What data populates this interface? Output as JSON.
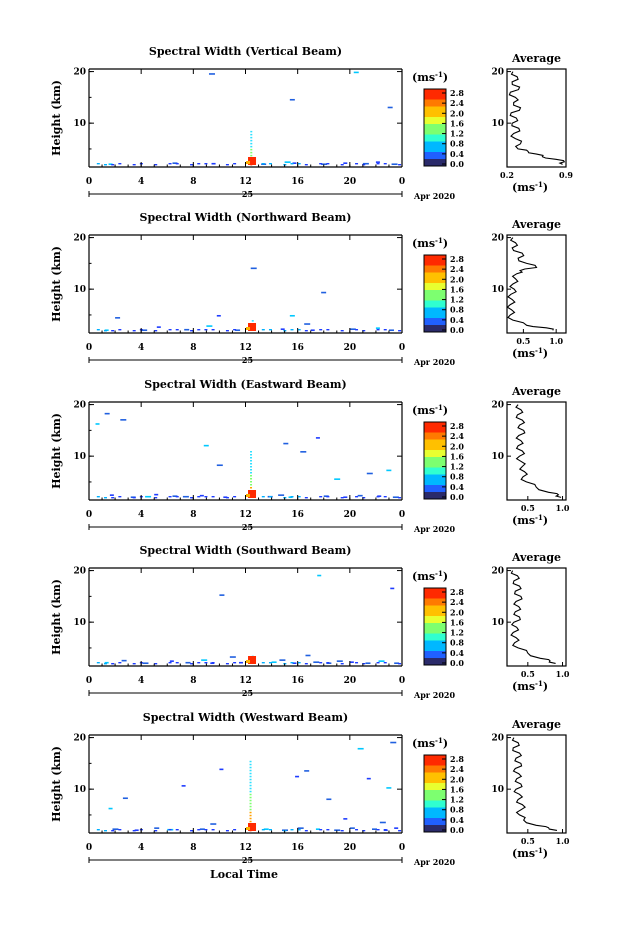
{
  "figure": {
    "xlabel": "Local Time",
    "date_month": "Apr 2020",
    "date_day": "25"
  },
  "chart_data": [
    {
      "type": "heatmap",
      "beam": "vertical",
      "title": "Spectral Width (Vertical Beam)",
      "ylabel": "Height (km)",
      "xlabel": "Local Time",
      "x_ticks": [
        "0",
        "4",
        "8",
        "12",
        "16",
        "20",
        "0"
      ],
      "xlim": [
        0,
        24
      ],
      "y_ticks": [
        "20",
        "10"
      ],
      "ylim": [
        1.5,
        20.5
      ],
      "colorbar": {
        "unit": "(ms-1)",
        "min": 0,
        "max": 2.9,
        "ticks": [
          "2.8",
          "2.4",
          "2.0",
          "1.6",
          "1.2",
          "0.8",
          "0.4",
          "0.0"
        ]
      },
      "burst_time": 12.5,
      "burst_top": 8.5,
      "speckles": [
        [
          1.5,
          2.0
        ],
        [
          6.4,
          2.2
        ],
        [
          9.2,
          19.5
        ],
        [
          9.4,
          2.1
        ],
        [
          13.2,
          2.0
        ],
        [
          15.0,
          2.4
        ],
        [
          15.6,
          2.2
        ],
        [
          15.4,
          14.5
        ],
        [
          17.8,
          2.0
        ],
        [
          19.5,
          2.2
        ],
        [
          20.3,
          19.8
        ],
        [
          21.0,
          2.1
        ],
        [
          22.0,
          2.4
        ],
        [
          22.9,
          13.0
        ],
        [
          23.2,
          2.0
        ]
      ],
      "average": {
        "title": "Average",
        "unit": "(ms-1)",
        "x_ticks": [
          "0.2",
          "0.9"
        ],
        "xlim": [
          0.2,
          0.9
        ],
        "y_ticks": [
          "20",
          "10"
        ],
        "ylim": [
          1.5,
          20.5
        ],
        "profile": [
          [
            20,
            0.27
          ],
          [
            19,
            0.32
          ],
          [
            18,
            0.26
          ],
          [
            17,
            0.35
          ],
          [
            16,
            0.24
          ],
          [
            15,
            0.3
          ],
          [
            14,
            0.28
          ],
          [
            13,
            0.36
          ],
          [
            12,
            0.25
          ],
          [
            11,
            0.31
          ],
          [
            10,
            0.26
          ],
          [
            9,
            0.34
          ],
          [
            8,
            0.28
          ],
          [
            7,
            0.3
          ],
          [
            6,
            0.36
          ],
          [
            5,
            0.33
          ],
          [
            4.5,
            0.45
          ],
          [
            4,
            0.55
          ],
          [
            3.5,
            0.62
          ],
          [
            3,
            0.78
          ],
          [
            2.5,
            0.88
          ],
          [
            2,
            0.86
          ]
        ]
      }
    },
    {
      "type": "heatmap",
      "beam": "northward",
      "title": "Spectral Width (Northward Beam)",
      "ylabel": "Height (km)",
      "xlabel": "Local Time",
      "x_ticks": [
        "0",
        "4",
        "8",
        "12",
        "16",
        "20",
        "0"
      ],
      "xlim": [
        0,
        24
      ],
      "y_ticks": [
        "20",
        "10"
      ],
      "ylim": [
        1.5,
        20.5
      ],
      "colorbar": {
        "unit": "(ms-1)",
        "min": 0,
        "max": 2.9,
        "ticks": [
          "2.8",
          "2.4",
          "2.0",
          "1.6",
          "1.2",
          "0.8",
          "0.4",
          "0.0"
        ]
      },
      "burst_time": 12.5,
      "burst_top": 4.0,
      "speckles": [
        [
          1.2,
          2.0
        ],
        [
          2.0,
          4.4
        ],
        [
          4.0,
          2.0
        ],
        [
          5.2,
          2.6
        ],
        [
          7.3,
          2.1
        ],
        [
          9.0,
          2.8
        ],
        [
          9.8,
          4.8
        ],
        [
          11.2,
          2.0
        ],
        [
          12.4,
          14.0
        ],
        [
          14.7,
          2.2
        ],
        [
          15.4,
          4.8
        ],
        [
          16.5,
          3.2
        ],
        [
          17.0,
          2.0
        ],
        [
          17.8,
          9.3
        ],
        [
          20.0,
          2.2
        ],
        [
          22.0,
          2.4
        ],
        [
          23.0,
          2.0
        ]
      ],
      "average": {
        "title": "Average",
        "unit": "(ms-1)",
        "x_ticks": [
          "0.5",
          "1.0"
        ],
        "xlim": [
          0.25,
          1.15
        ],
        "y_ticks": [
          "20",
          "10"
        ],
        "ylim": [
          1.5,
          20.5
        ],
        "profile": [
          [
            20,
            0.34
          ],
          [
            19,
            0.38
          ],
          [
            18,
            0.33
          ],
          [
            17,
            0.48
          ],
          [
            16,
            0.42
          ],
          [
            15,
            0.55
          ],
          [
            14.2,
            0.7
          ],
          [
            13.6,
            0.45
          ],
          [
            13,
            0.4
          ],
          [
            12,
            0.38
          ],
          [
            11,
            0.34
          ],
          [
            10,
            0.36
          ],
          [
            9,
            0.31
          ],
          [
            8,
            0.33
          ],
          [
            7,
            0.3
          ],
          [
            6,
            0.32
          ],
          [
            5,
            0.3
          ],
          [
            4,
            0.34
          ],
          [
            3,
            0.55
          ],
          [
            2.5,
            0.85
          ],
          [
            2,
            0.95
          ]
        ]
      }
    },
    {
      "type": "heatmap",
      "beam": "eastward",
      "title": "Spectral Width (Eastward Beam)",
      "ylabel": "Height (km)",
      "xlabel": "Local Time",
      "x_ticks": [
        "0",
        "4",
        "8",
        "12",
        "16",
        "20",
        "0"
      ],
      "xlim": [
        0,
        24
      ],
      "y_ticks": [
        "20",
        "10"
      ],
      "ylim": [
        1.5,
        20.5
      ],
      "colorbar": {
        "unit": "(ms-1)",
        "min": 0,
        "max": 2.9,
        "ticks": [
          "2.8",
          "2.4",
          "2.0",
          "1.6",
          "1.2",
          "0.8",
          "0.4",
          "0.0"
        ]
      },
      "burst_time": 12.5,
      "burst_top": 11.0,
      "speckles": [
        [
          0.5,
          16.2
        ],
        [
          1.2,
          18.2
        ],
        [
          2.4,
          17.0
        ],
        [
          1.6,
          2.4
        ],
        [
          3.2,
          2.0
        ],
        [
          4.3,
          2.1
        ],
        [
          5.0,
          2.5
        ],
        [
          6.4,
          2.2
        ],
        [
          7.2,
          2.1
        ],
        [
          8.5,
          2.3
        ],
        [
          8.8,
          12.0
        ],
        [
          9.8,
          8.2
        ],
        [
          10.3,
          2.0
        ],
        [
          13.7,
          2.1
        ],
        [
          14.5,
          2.4
        ],
        [
          15.3,
          2.0
        ],
        [
          14.9,
          12.4
        ],
        [
          16.2,
          10.8
        ],
        [
          17.4,
          13.5
        ],
        [
          18.0,
          2.2
        ],
        [
          18.8,
          5.5
        ],
        [
          19.5,
          2.0
        ],
        [
          20.6,
          2.3
        ],
        [
          21.3,
          6.6
        ],
        [
          22.1,
          2.2
        ],
        [
          22.8,
          7.2
        ],
        [
          23.3,
          2.0
        ]
      ],
      "average": {
        "title": "Average",
        "unit": "(ms-1)",
        "x_ticks": [
          "0.5",
          "1.0"
        ],
        "xlim": [
          0.2,
          1.05
        ],
        "y_ticks": [
          "20",
          "10"
        ],
        "ylim": [
          1.5,
          20.5
        ],
        "profile": [
          [
            20,
            0.36
          ],
          [
            19,
            0.4
          ],
          [
            18,
            0.35
          ],
          [
            17,
            0.42
          ],
          [
            16,
            0.38
          ],
          [
            15,
            0.44
          ],
          [
            14,
            0.37
          ],
          [
            13,
            0.4
          ],
          [
            12,
            0.36
          ],
          [
            11,
            0.42
          ],
          [
            10,
            0.38
          ],
          [
            9,
            0.4
          ],
          [
            8,
            0.42
          ],
          [
            7,
            0.45
          ],
          [
            6,
            0.43
          ],
          [
            5,
            0.48
          ],
          [
            4,
            0.62
          ],
          [
            3,
            0.8
          ],
          [
            2.5,
            0.94
          ],
          [
            2,
            0.98
          ]
        ]
      }
    },
    {
      "type": "heatmap",
      "beam": "southward",
      "title": "Spectral Width (Southward Beam)",
      "ylabel": "Height (km)",
      "xlabel": "Local Time",
      "x_ticks": [
        "0",
        "4",
        "8",
        "12",
        "16",
        "20",
        "0"
      ],
      "xlim": [
        0,
        24
      ],
      "y_ticks": [
        "20",
        "10"
      ],
      "ylim": [
        1.5,
        20.5
      ],
      "colorbar": {
        "unit": "(ms-1)",
        "min": 0,
        "max": 2.9,
        "ticks": [
          "2.8",
          "2.4",
          "2.0",
          "1.6",
          "1.2",
          "0.8",
          "0.4",
          "0.0"
        ]
      },
      "burst_time": 12.5,
      "burst_top": 3.5,
      "speckles": [
        [
          1.2,
          2.1
        ],
        [
          2.5,
          2.5
        ],
        [
          4.1,
          2.0
        ],
        [
          6.2,
          2.4
        ],
        [
          7.4,
          2.1
        ],
        [
          8.6,
          2.6
        ],
        [
          9.3,
          2.0
        ],
        [
          10.0,
          15.2
        ],
        [
          10.8,
          3.2
        ],
        [
          11.5,
          2.1
        ],
        [
          14.0,
          2.2
        ],
        [
          14.6,
          2.6
        ],
        [
          15.6,
          2.0
        ],
        [
          16.6,
          3.5
        ],
        [
          17.2,
          2.2
        ],
        [
          17.5,
          19.0
        ],
        [
          18.2,
          2.0
        ],
        [
          19.0,
          2.4
        ],
        [
          20.0,
          2.2
        ],
        [
          21.2,
          2.0
        ],
        [
          22.2,
          2.4
        ],
        [
          23.1,
          16.5
        ],
        [
          23.4,
          2.0
        ]
      ],
      "average": {
        "title": "Average",
        "unit": "(ms-1)",
        "x_ticks": [
          "0.5",
          "1.0"
        ],
        "xlim": [
          0.2,
          1.05
        ],
        "y_ticks": [
          "20",
          "10"
        ],
        "ylim": [
          1.5,
          20.5
        ],
        "profile": [
          [
            20,
            0.28
          ],
          [
            19,
            0.35
          ],
          [
            18,
            0.3
          ],
          [
            17,
            0.38
          ],
          [
            16,
            0.32
          ],
          [
            15,
            0.4
          ],
          [
            14,
            0.33
          ],
          [
            13,
            0.37
          ],
          [
            12,
            0.32
          ],
          [
            11,
            0.38
          ],
          [
            10,
            0.3
          ],
          [
            9,
            0.34
          ],
          [
            8,
            0.29
          ],
          [
            7,
            0.33
          ],
          [
            6,
            0.31
          ],
          [
            5,
            0.36
          ],
          [
            4,
            0.5
          ],
          [
            3,
            0.68
          ],
          [
            2.5,
            0.82
          ],
          [
            2,
            0.9
          ]
        ]
      }
    },
    {
      "type": "heatmap",
      "beam": "westward",
      "title": "Spectral Width (Westward Beam)",
      "ylabel": "Height (km)",
      "xlabel": "Local Time",
      "x_ticks": [
        "0",
        "4",
        "8",
        "12",
        "16",
        "20",
        "0"
      ],
      "xlim": [
        0,
        24
      ],
      "y_ticks": [
        "20",
        "10"
      ],
      "ylim": [
        1.5,
        20.5
      ],
      "colorbar": {
        "unit": "(ms-1)",
        "min": 0,
        "max": 2.9,
        "ticks": [
          "2.8",
          "2.4",
          "2.0",
          "1.6",
          "1.2",
          "0.8",
          "0.4",
          "0.0"
        ]
      },
      "burst_time": 12.5,
      "burst_top": 15.5,
      "speckles": [
        [
          1.5,
          6.2
        ],
        [
          2.6,
          8.2
        ],
        [
          1.8,
          2.2
        ],
        [
          3.5,
          2.0
        ],
        [
          5.0,
          2.4
        ],
        [
          6.0,
          2.1
        ],
        [
          7.1,
          10.6
        ],
        [
          8.5,
          2.2
        ],
        [
          9.3,
          3.2
        ],
        [
          10.0,
          13.8
        ],
        [
          13.4,
          2.2
        ],
        [
          14.8,
          2.0
        ],
        [
          15.8,
          12.4
        ],
        [
          16.5,
          13.5
        ],
        [
          16.0,
          2.4
        ],
        [
          17.4,
          2.2
        ],
        [
          18.2,
          8.0
        ],
        [
          18.8,
          2.0
        ],
        [
          19.5,
          4.2
        ],
        [
          20.0,
          2.4
        ],
        [
          20.6,
          17.8
        ],
        [
          21.3,
          12.0
        ],
        [
          21.7,
          2.2
        ],
        [
          22.3,
          3.5
        ],
        [
          22.6,
          2.0
        ],
        [
          22.8,
          10.2
        ],
        [
          23.1,
          19.0
        ],
        [
          23.4,
          2.4
        ]
      ],
      "average": {
        "title": "Average",
        "unit": "(ms-1)",
        "x_ticks": [
          "0.5",
          "1.0"
        ],
        "xlim": [
          0.2,
          1.05
        ],
        "y_ticks": [
          "20",
          "10"
        ],
        "ylim": [
          1.5,
          20.5
        ],
        "profile": [
          [
            20,
            0.3
          ],
          [
            19,
            0.36
          ],
          [
            18,
            0.29
          ],
          [
            17,
            0.38
          ],
          [
            16,
            0.33
          ],
          [
            15,
            0.4
          ],
          [
            14,
            0.32
          ],
          [
            13,
            0.37
          ],
          [
            12,
            0.34
          ],
          [
            11,
            0.4
          ],
          [
            10,
            0.33
          ],
          [
            9,
            0.38
          ],
          [
            8,
            0.36
          ],
          [
            7,
            0.42
          ],
          [
            6,
            0.4
          ],
          [
            5,
            0.38
          ],
          [
            4,
            0.44
          ],
          [
            3,
            0.62
          ],
          [
            2.5,
            0.8
          ],
          [
            2,
            0.92
          ]
        ]
      }
    }
  ]
}
